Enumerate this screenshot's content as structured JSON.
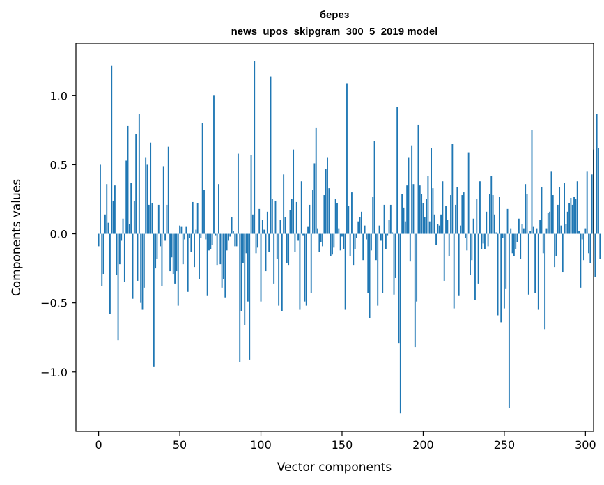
{
  "chart_data": {
    "type": "bar",
    "title": "берез",
    "subtitle": "news_upos_skipgram_300_5_2019 model",
    "xlabel": "Vector components",
    "ylabel": "Components values",
    "xlim": [
      -14,
      305
    ],
    "ylim": [
      -1.43,
      1.38
    ],
    "xticks": [
      0,
      50,
      100,
      150,
      200,
      250,
      300
    ],
    "yticks": [
      1.0,
      0.5,
      0.0,
      -0.5,
      -1.0
    ],
    "ytick_labels": [
      "1.0",
      "0.5",
      "0.0",
      "−0.5",
      "−1.0"
    ],
    "bar_color": "#1f77b4",
    "x_start": 0,
    "values": [
      -0.09,
      0.5,
      -0.38,
      -0.29,
      0.14,
      0.36,
      0.08,
      -0.58,
      1.22,
      0.24,
      0.35,
      -0.3,
      -0.77,
      -0.22,
      -0.05,
      0.11,
      -0.35,
      0.53,
      0.78,
      0.07,
      0.37,
      -0.47,
      0.24,
      0.72,
      -0.34,
      0.87,
      -0.5,
      -0.55,
      -0.39,
      0.55,
      0.5,
      0.21,
      0.66,
      0.22,
      -0.96,
      -0.25,
      -0.18,
      0.21,
      -0.09,
      -0.38,
      0.49,
      -0.05,
      0.21,
      0.63,
      -0.27,
      -0.17,
      -0.29,
      -0.36,
      -0.27,
      -0.52,
      0.06,
      0.05,
      -0.22,
      -0.04,
      0.05,
      -0.42,
      -0.03,
      -0.13,
      0.23,
      -0.24,
      0.03,
      0.22,
      -0.33,
      -0.03,
      0.8,
      0.32,
      -0.04,
      -0.45,
      -0.12,
      -0.11,
      -0.08,
      1.0,
      -0.01,
      -0.23,
      0.36,
      -0.22,
      -0.39,
      -0.33,
      -0.46,
      -0.12,
      -0.05,
      -0.02,
      0.12,
      0.02,
      -0.09,
      -0.09,
      0.58,
      -0.93,
      -0.56,
      -0.21,
      -0.66,
      -0.14,
      -0.49,
      -0.91,
      0.57,
      0.14,
      1.25,
      -0.14,
      -0.1,
      0.18,
      -0.49,
      0.1,
      0.03,
      -0.27,
      0.16,
      -0.13,
      1.14,
      0.25,
      -0.36,
      0.24,
      -0.18,
      -0.52,
      0.1,
      -0.56,
      0.43,
      0.12,
      -0.21,
      -0.23,
      0.17,
      0.25,
      0.61,
      -0.13,
      0.23,
      -0.05,
      -0.55,
      0.38,
      -0.01,
      -0.49,
      -0.52,
      0.05,
      0.21,
      -0.43,
      0.32,
      0.51,
      0.77,
      0.04,
      -0.13,
      -0.06,
      -0.09,
      0.28,
      0.47,
      0.55,
      0.33,
      -0.16,
      -0.15,
      -0.1,
      0.25,
      0.22,
      0.04,
      -0.12,
      -0.02,
      -0.11,
      -0.55,
      1.09,
      0.2,
      -0.16,
      0.3,
      -0.23,
      -0.11,
      -0.03,
      0.09,
      0.12,
      0.16,
      -0.19,
      0.06,
      -0.04,
      -0.43,
      -0.61,
      -0.12,
      0.27,
      0.67,
      -0.19,
      -0.52,
      0.06,
      -0.05,
      -0.43,
      0.21,
      -0.11,
      -0.01,
      0.1,
      0.21,
      0.01,
      -0.44,
      -0.32,
      0.92,
      -0.79,
      -1.3,
      0.29,
      0.19,
      0.09,
      0.35,
      0.55,
      -0.2,
      0.64,
      0.36,
      -0.82,
      -0.49,
      0.79,
      0.35,
      0.29,
      0.22,
      0.12,
      0.25,
      0.42,
      0.09,
      0.62,
      0.33,
      0.14,
      -0.08,
      0.07,
      0.06,
      0.14,
      0.38,
      -0.34,
      0.2,
      0.1,
      -0.16,
      0.28,
      0.65,
      -0.54,
      0.21,
      0.34,
      -0.45,
      0.06,
      0.28,
      0.3,
      -0.03,
      -0.12,
      0.59,
      -0.3,
      -0.19,
      0.11,
      -0.48,
      0.25,
      -0.36,
      0.38,
      -0.11,
      -0.07,
      -0.11,
      0.16,
      -0.09,
      0.29,
      0.42,
      0.28,
      0.14,
      0.01,
      -0.59,
      0.27,
      -0.64,
      -0.03,
      -0.54,
      -0.4,
      0.18,
      -1.26,
      0.04,
      -0.14,
      -0.16,
      -0.11,
      -0.06,
      0.11,
      -0.18,
      0.07,
      0.04,
      0.36,
      0.29,
      -0.44,
      0.02,
      0.75,
      0.05,
      -0.43,
      0.04,
      -0.55,
      0.1,
      0.34,
      -0.14,
      -0.69,
      0.04,
      0.15,
      0.16,
      0.45,
      0.28,
      -0.24,
      -0.16,
      0.21,
      0.34,
      0.06,
      -0.28,
      0.37,
      0.07,
      0.16,
      0.22,
      0.26,
      0.21,
      0.27,
      0.25,
      0.38,
      0.02,
      -0.39,
      -0.04,
      -0.19,
      0.04,
      0.45,
      -0.14,
      -0.21,
      0.43,
      0.61,
      -0.31,
      0.87,
      0.62,
      -0.18
    ]
  }
}
